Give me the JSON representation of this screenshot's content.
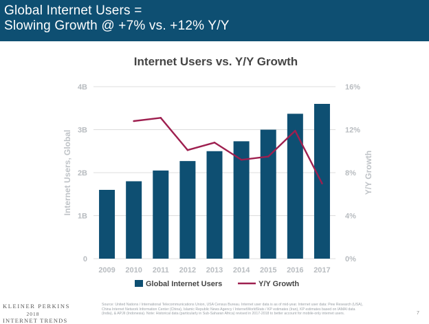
{
  "header": {
    "line1": "Global Internet Users =",
    "line2": "Slowing Growth @ +7% vs. +12% Y/Y"
  },
  "colors": {
    "header_bg": "#0e4f72",
    "bar": "#0e4f72",
    "line": "#9e1f4f",
    "grid": "#dcdcdc",
    "tick_text": "#b8bcc0",
    "axis_title": "#bfc3c7"
  },
  "chart_data": {
    "type": "bar",
    "title": "Internet Users vs. Y/Y Growth",
    "categories": [
      "2009",
      "2010",
      "2011",
      "2012",
      "2013",
      "2014",
      "2015",
      "2016",
      "2017"
    ],
    "series": [
      {
        "name": "Global Internet Users",
        "type": "bar",
        "axis": "left",
        "values": [
          1.6,
          1.8,
          2.05,
          2.27,
          2.5,
          2.73,
          3.0,
          3.37,
          3.6
        ]
      },
      {
        "name": "Y/Y Growth",
        "type": "line",
        "axis": "right",
        "values": [
          null,
          12.8,
          13.1,
          10.1,
          10.8,
          9.2,
          9.5,
          11.9,
          7.0
        ]
      }
    ],
    "ylabel": "Internet Users, Global",
    "ylabel_right": "Y/Y Growth",
    "ylim": [
      0,
      4
    ],
    "ylim_right": [
      0,
      16
    ],
    "yticks": [
      "0",
      "1B",
      "2B",
      "3B",
      "4B"
    ],
    "yticks_right": [
      "0%",
      "4%",
      "8%",
      "12%",
      "16%"
    ],
    "grid": true,
    "legend_position": "bottom"
  },
  "footer": {
    "logo_line1": "KLEINER PERKINS",
    "logo_line2": "2018",
    "logo_line3": "INTERNET TRENDS",
    "source": "Source: United Nations / International Telecommunications Union, USA Census Bureau. Internet user data is as of mid-year. Internet user data: Pew Research (USA), China Internet Network Information Center (China), Islamic Republic News Agency / InternetWorldStats / KP estimates (Iran), KP estimates based on IAMAI data (India), & APJII (Indonesia). Note: Historical data (particularly in Sub-Saharan Africa) revised in 2017-2018 to better account for mobile-only internet users.",
    "page_number": "7"
  }
}
